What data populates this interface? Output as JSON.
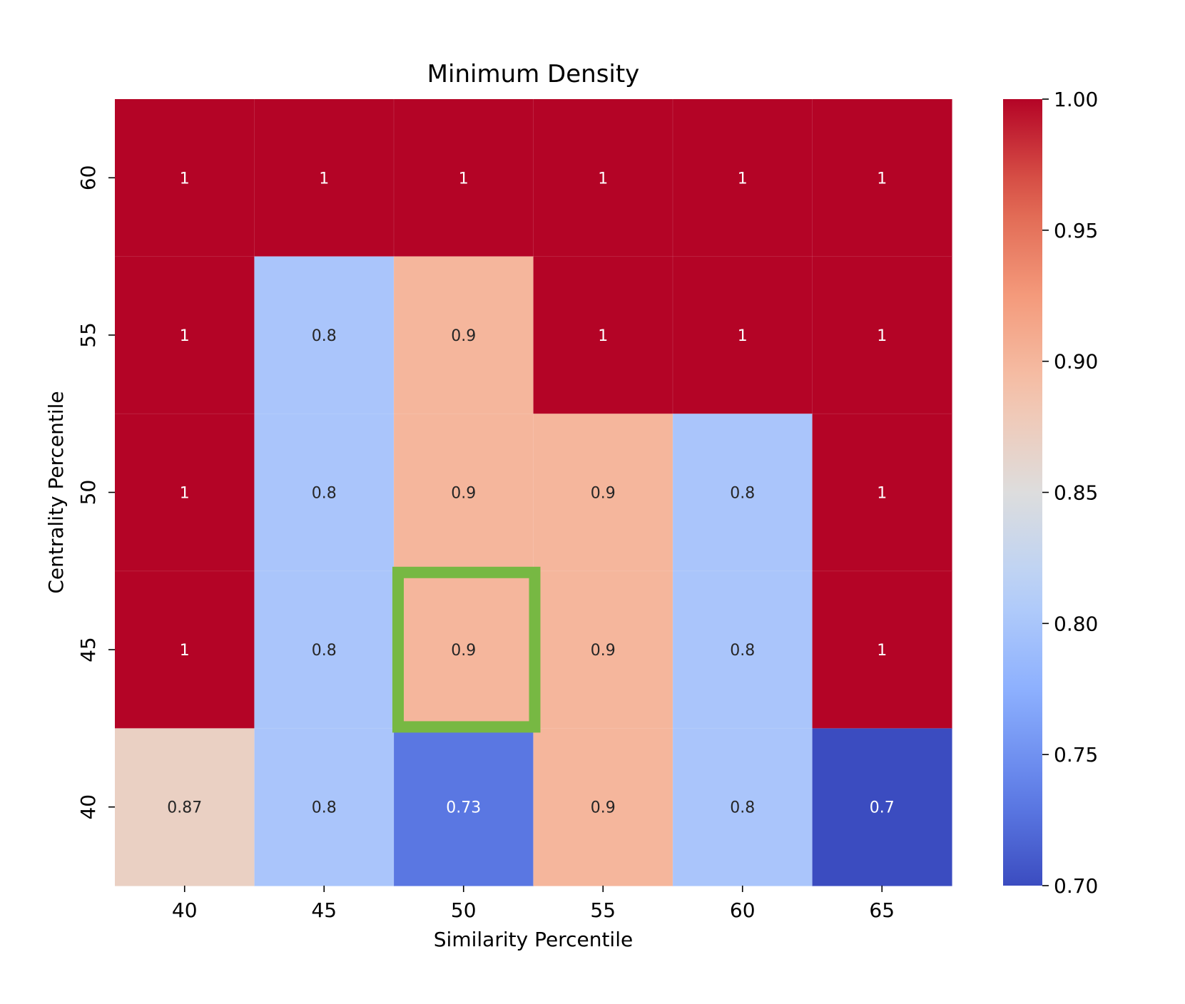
{
  "chart_data": {
    "type": "heatmap",
    "title": "Minimum Density",
    "xlabel": "Similarity Percentile",
    "ylabel": "Centrality Percentile",
    "x_categories": [
      "40",
      "45",
      "50",
      "55",
      "60",
      "65"
    ],
    "y_categories": [
      "60",
      "55",
      "50",
      "45",
      "40"
    ],
    "values": [
      [
        1,
        1,
        1,
        1,
        1,
        1
      ],
      [
        1,
        0.8,
        0.9,
        1,
        1,
        1
      ],
      [
        1,
        0.8,
        0.9,
        0.9,
        0.8,
        1
      ],
      [
        1,
        0.8,
        0.9,
        0.9,
        0.8,
        1
      ],
      [
        0.87,
        0.8,
        0.73,
        0.9,
        0.8,
        0.7
      ]
    ],
    "cell_labels": [
      [
        "1",
        "1",
        "1",
        "1",
        "1",
        "1"
      ],
      [
        "1",
        "0.8",
        "0.9",
        "1",
        "1",
        "1"
      ],
      [
        "1",
        "0.8",
        "0.9",
        "0.9",
        "0.8",
        "1"
      ],
      [
        "1",
        "0.8",
        "0.9",
        "0.9",
        "0.8",
        "1"
      ],
      [
        "0.87",
        "0.8",
        "0.73",
        "0.9",
        "0.8",
        "0.7"
      ]
    ],
    "colormap": "coolwarm",
    "value_range": [
      0.7,
      1.0
    ],
    "colorbar_ticks": [
      "0.70",
      "0.75",
      "0.80",
      "0.85",
      "0.90",
      "0.95",
      "1.00"
    ],
    "highlight": {
      "x": "50",
      "y": "45",
      "color": "#77b843"
    }
  }
}
